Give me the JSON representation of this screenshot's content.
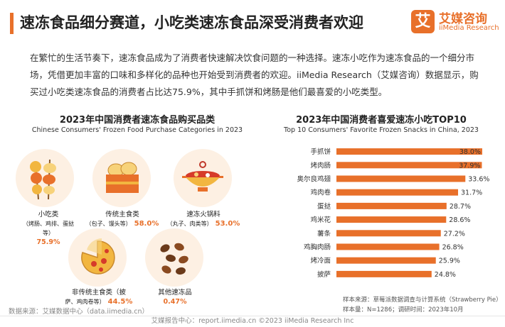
{
  "header": {
    "title": "速冻食品细分赛道，小吃类速冻食品深受消费者欢迎",
    "logo_mark": "艾",
    "logo_cn": "艾媒咨询",
    "logo_en": "iiMedia Research"
  },
  "intro": "在繁忙的生活节奏下，速冻食品成为了消费者快速解决饮食问题的一种选择。速冻小吃作为速冻食品的一个细分市场，凭借更加丰富的口味和多样化的品种也开始受到消费者的欢迎。iiMedia Research（艾媒咨询）数据显示，购买过小吃类速冻食品的消费者占比达75.9%，其中手抓饼和烤肠是他们最喜爱的小吃类型。",
  "left_section": {
    "title": "2023年中国消费者速冻食品购买品类",
    "subtitle": "Chinese Consumers' Frozen Food Purchase Categories in 2023",
    "categories": [
      {
        "name": "小吃类",
        "detail": "（烤肠、鸡排、蛋挞等）",
        "pct": "75.9%"
      },
      {
        "name": "传统主食类",
        "detail": "（包子、馒头等）",
        "pct": "58.0%"
      },
      {
        "name": "速冻火锅料",
        "detail": "（丸子、肉类等）",
        "pct": "53.0%"
      },
      {
        "name": "非传统主食类（披",
        "detail": "萨、鸡肉卷等）",
        "pct": "44.5%"
      },
      {
        "name": "其他速冻品",
        "detail": "",
        "pct": "0.47%"
      }
    ],
    "source": "数据来源：艾媒数据中心（data.iimedia.cn）"
  },
  "right_section": {
    "title": "2023年中国消费者喜爱速冻小吃TOP10",
    "subtitle": "Top 10 Consumers' Favorite Frozen Snacks in China, 2023",
    "note_source": "样本来源：草莓派数据调查与计算系统（Strawberry Pie）",
    "note_sample": "样本量：N=1286；调研时间：2023年10月"
  },
  "chart_data": {
    "type": "bar",
    "orientation": "horizontal",
    "title": "2023年中国消费者喜爱速冻小吃TOP10",
    "subtitle": "Top 10 Consumers' Favorite Frozen Snacks in China, 2023",
    "categories": [
      "手抓饼",
      "烤肉肠",
      "奥尔良鸡翅",
      "鸡肉卷",
      "蛋挞",
      "鸡米花",
      "薯条",
      "鸡胸肉肠",
      "烤冷面",
      "披萨"
    ],
    "values": [
      38.0,
      37.9,
      33.6,
      31.7,
      28.7,
      28.6,
      27.2,
      26.8,
      25.9,
      24.8
    ],
    "value_labels": [
      "38.0%",
      "37.9%",
      "33.6%",
      "31.7%",
      "28.7%",
      "28.6%",
      "27.2%",
      "26.8%",
      "25.9%",
      "24.8%"
    ],
    "unit": "%",
    "xlim": [
      0,
      38.0
    ],
    "bar_color": "#e8702a",
    "grid": false,
    "legend": "none"
  },
  "footer": "艾媒报告中心：report.iimedia.cn  ©2023  iiMedia Research  Inc",
  "colors": {
    "accent": "#e8702a",
    "circle_bg": "#fdf0e3"
  }
}
